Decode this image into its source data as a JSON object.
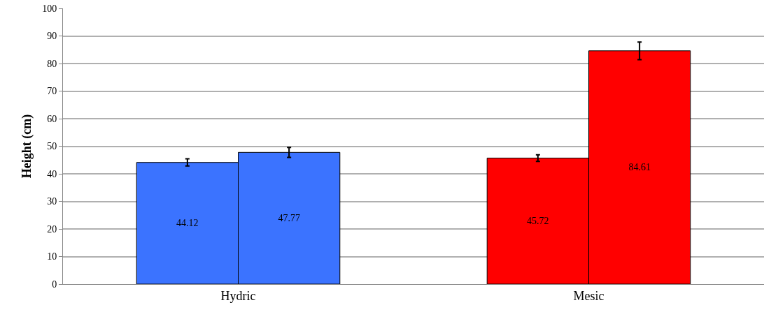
{
  "chart_data": {
    "type": "bar",
    "ylabel": "Height (cm)",
    "categories": [
      "Hydric",
      "Mesic"
    ],
    "series": [
      {
        "colors": [
          "#3b73ff",
          "#ff0000"
        ],
        "values": [
          44.12,
          45.72
        ],
        "errors": [
          1.3,
          1.2
        ]
      },
      {
        "colors": [
          "#3b73ff",
          "#ff0000"
        ],
        "values": [
          47.77,
          84.61
        ],
        "errors": [
          1.8,
          3.2
        ]
      }
    ],
    "ylim": [
      0,
      100
    ],
    "yticks": [
      0,
      10,
      20,
      30,
      40,
      50,
      60,
      70,
      80,
      90,
      100
    ],
    "grid": "y",
    "data_labels": true,
    "legend": false
  }
}
